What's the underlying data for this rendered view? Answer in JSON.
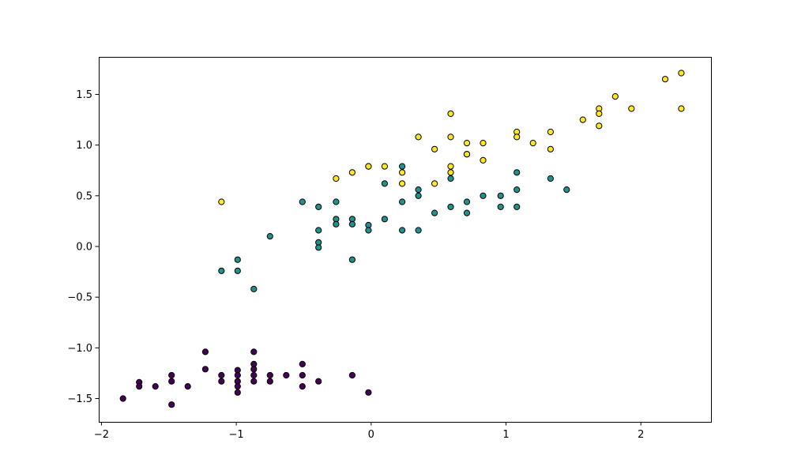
{
  "chart_data": {
    "type": "scatter",
    "title": "",
    "xlabel": "",
    "ylabel": "",
    "xlim": [
      -2.02,
      2.52
    ],
    "ylim": [
      -1.73,
      1.87
    ],
    "grid": false,
    "legend": "none",
    "xticks": [
      {
        "value": -2,
        "label": "−2"
      },
      {
        "value": -1,
        "label": "−1"
      },
      {
        "value": 0,
        "label": "0"
      },
      {
        "value": 1,
        "label": "1"
      },
      {
        "value": 2,
        "label": "2"
      }
    ],
    "yticks": [
      {
        "value": -1.5,
        "label": "−1.5"
      },
      {
        "value": -1.0,
        "label": "−1.0"
      },
      {
        "value": -0.5,
        "label": "−0.5"
      },
      {
        "value": 0.0,
        "label": "0.0"
      },
      {
        "value": 0.5,
        "label": "0.5"
      },
      {
        "value": 1.0,
        "label": "1.0"
      },
      {
        "value": 1.5,
        "label": "1.5"
      }
    ],
    "series": [
      {
        "color": "#440154",
        "points": [
          [
            -1.84,
            -1.5
          ],
          [
            -1.72,
            -1.34
          ],
          [
            -1.72,
            -1.38
          ],
          [
            -1.6,
            -1.38
          ],
          [
            -1.48,
            -1.56
          ],
          [
            -1.48,
            -1.33
          ],
          [
            -1.48,
            -1.27
          ],
          [
            -1.36,
            -1.38
          ],
          [
            -1.23,
            -1.04
          ],
          [
            -1.23,
            -1.21
          ],
          [
            -1.11,
            -1.27
          ],
          [
            -1.11,
            -1.33
          ],
          [
            -0.99,
            -1.22
          ],
          [
            -0.99,
            -1.27
          ],
          [
            -0.99,
            -1.33
          ],
          [
            -0.99,
            -1.38
          ],
          [
            -0.99,
            -1.44
          ],
          [
            -0.87,
            -1.04
          ],
          [
            -0.87,
            -1.16
          ],
          [
            -0.87,
            -1.21
          ],
          [
            -0.87,
            -1.27
          ],
          [
            -0.87,
            -1.33
          ],
          [
            -0.75,
            -1.27
          ],
          [
            -0.75,
            -1.33
          ],
          [
            -0.63,
            -1.27
          ],
          [
            -0.51,
            -1.16
          ],
          [
            -0.51,
            -1.27
          ],
          [
            -0.51,
            -1.38
          ],
          [
            -0.39,
            -1.33
          ],
          [
            -0.14,
            -1.27
          ],
          [
            -0.02,
            -1.44
          ]
        ]
      },
      {
        "color": "#21918c",
        "points": [
          [
            -1.11,
            -0.24
          ],
          [
            -0.99,
            -0.13
          ],
          [
            -0.99,
            -0.24
          ],
          [
            -0.87,
            -0.42
          ],
          [
            -0.75,
            0.1
          ],
          [
            -0.51,
            0.44
          ],
          [
            -0.39,
            0.39
          ],
          [
            -0.39,
            0.16
          ],
          [
            -0.39,
            0.04
          ],
          [
            -0.39,
            -0.01
          ],
          [
            -0.26,
            0.44
          ],
          [
            -0.26,
            0.27
          ],
          [
            -0.26,
            0.22
          ],
          [
            -0.14,
            0.27
          ],
          [
            -0.14,
            0.22
          ],
          [
            -0.14,
            -0.13
          ],
          [
            -0.02,
            0.21
          ],
          [
            -0.02,
            0.16
          ],
          [
            0.1,
            0.62
          ],
          [
            0.1,
            0.27
          ],
          [
            0.23,
            0.79
          ],
          [
            0.23,
            0.44
          ],
          [
            0.23,
            0.16
          ],
          [
            0.35,
            0.56
          ],
          [
            0.35,
            0.5
          ],
          [
            0.35,
            0.16
          ],
          [
            0.47,
            0.33
          ],
          [
            0.59,
            0.67
          ],
          [
            0.59,
            0.39
          ],
          [
            0.71,
            0.44
          ],
          [
            0.71,
            0.33
          ],
          [
            0.83,
            0.5
          ],
          [
            0.96,
            0.5
          ],
          [
            0.96,
            0.39
          ],
          [
            1.08,
            0.73
          ],
          [
            1.08,
            0.56
          ],
          [
            1.08,
            0.39
          ],
          [
            1.33,
            0.67
          ],
          [
            1.45,
            0.56
          ]
        ]
      },
      {
        "color": "#fde725",
        "points": [
          [
            -1.11,
            0.44
          ],
          [
            -0.26,
            0.67
          ],
          [
            -0.14,
            0.73
          ],
          [
            -0.02,
            0.79
          ],
          [
            -0.02,
            0.79
          ],
          [
            0.1,
            0.79
          ],
          [
            0.23,
            0.73
          ],
          [
            0.23,
            0.62
          ],
          [
            0.35,
            1.08
          ],
          [
            0.47,
            0.96
          ],
          [
            0.47,
            0.62
          ],
          [
            0.59,
            1.31
          ],
          [
            0.59,
            1.08
          ],
          [
            0.59,
            0.79
          ],
          [
            0.59,
            0.73
          ],
          [
            0.71,
            1.02
          ],
          [
            0.71,
            0.91
          ],
          [
            0.71,
            0.91
          ],
          [
            0.83,
            1.02
          ],
          [
            0.83,
            0.85
          ],
          [
            1.08,
            1.13
          ],
          [
            1.08,
            1.08
          ],
          [
            1.2,
            1.02
          ],
          [
            1.33,
            1.13
          ],
          [
            1.33,
            0.96
          ],
          [
            1.57,
            1.25
          ],
          [
            1.69,
            1.36
          ],
          [
            1.69,
            1.31
          ],
          [
            1.69,
            1.19
          ],
          [
            1.81,
            1.48
          ],
          [
            1.93,
            1.36
          ],
          [
            2.18,
            1.65
          ],
          [
            2.3,
            1.71
          ],
          [
            2.3,
            1.36
          ]
        ]
      }
    ]
  }
}
